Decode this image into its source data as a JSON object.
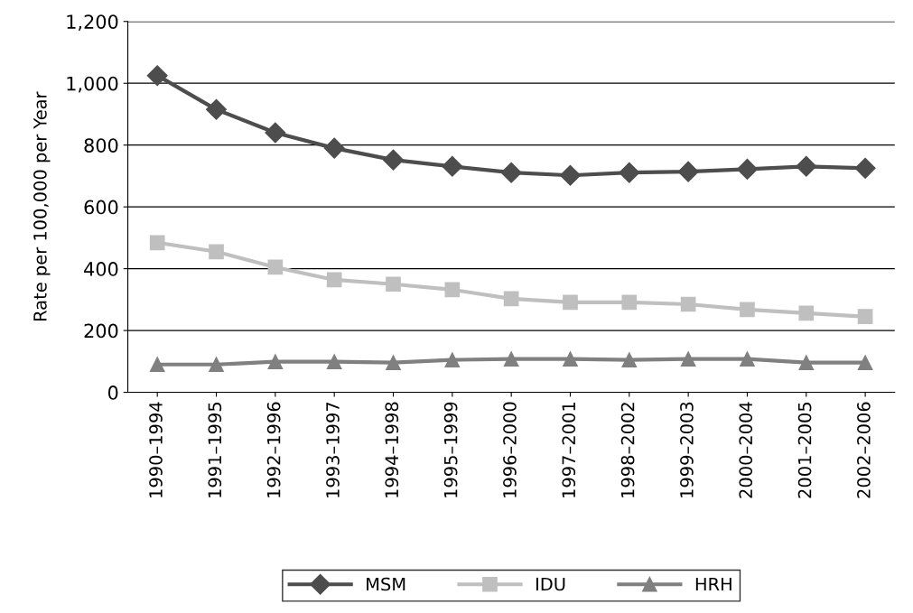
{
  "chart_data": {
    "type": "line",
    "ylabel": "Rate per 100,000 per Year",
    "categories": [
      "1990–1994",
      "1991–1995",
      "1992–1996",
      "1993–1997",
      "1994–1998",
      "1995–1999",
      "1996–2000",
      "1997–2001",
      "1998–2002",
      "1999–2003",
      "2000–2004",
      "2001–2005",
      "2002–2006"
    ],
    "series": [
      {
        "name": "MSM",
        "color": "#4d4d4d",
        "marker": "diamond",
        "values": [
          1025,
          915,
          840,
          790,
          752,
          731,
          711,
          702,
          711,
          714,
          722,
          731,
          725
        ]
      },
      {
        "name": "IDU",
        "color": "#bfbfbf",
        "marker": "square",
        "values": [
          484,
          455,
          405,
          364,
          350,
          332,
          303,
          291,
          291,
          285,
          268,
          256,
          245
        ]
      },
      {
        "name": "HRH",
        "color": "#808080",
        "marker": "triangle",
        "values": [
          90,
          90,
          99,
          99,
          96,
          105,
          108,
          108,
          105,
          108,
          108,
          96,
          96
        ]
      }
    ],
    "ylim": [
      0,
      1200
    ],
    "yticks": [
      0,
      {
        "value": 200,
        "label": "200"
      },
      {
        "value": 400,
        "label": "400"
      },
      {
        "value": 600,
        "label": "600"
      },
      {
        "value": 800,
        "label": "800"
      },
      {
        "value": 1000,
        "label": "1,000"
      },
      {
        "value": 1200,
        "label": "1,200"
      }
    ],
    "grid": "y",
    "legend": "bottom",
    "line_style": "solid"
  }
}
